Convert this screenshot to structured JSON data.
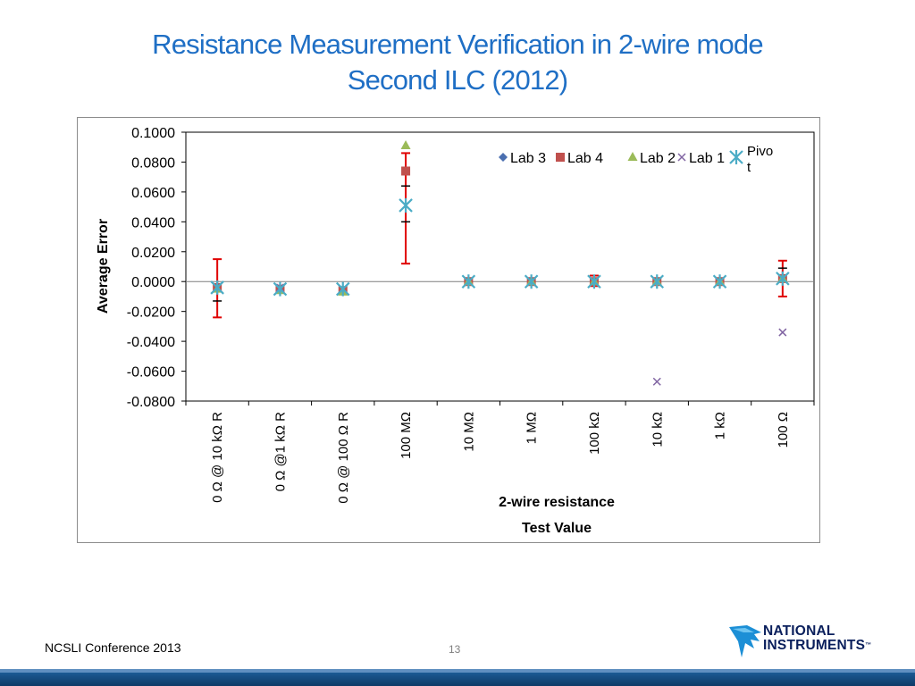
{
  "slide": {
    "title_line1": "Resistance Measurement Verification in 2-wire mode",
    "title_line2": "Second ILC (2012)",
    "footer_left": "NCSLI Conference 2013",
    "page_number": "13",
    "logo_line1": "NATIONAL",
    "logo_line2": "INSTRUMENTS",
    "logo_tm": "™"
  },
  "colors": {
    "title": "#1f6fc5",
    "lab3": "#4a6fb0",
    "lab4": "#c0504d",
    "lab2": "#9bbb59",
    "lab1": "#8064a2",
    "pivot": "#4bacc6",
    "error_bar": "#e00000",
    "zero_line": "#7f7f7f"
  },
  "chart_data": {
    "type": "scatter",
    "title": "",
    "ylabel": "Average Error",
    "xlabel_line1": "2-wire resistance",
    "xlabel_line2": "Test Value",
    "ylim": [
      -0.08,
      0.1
    ],
    "yticks": [
      0.1,
      0.08,
      0.06,
      0.04,
      0.02,
      0.0,
      -0.02,
      -0.04,
      -0.06,
      -0.08
    ],
    "ytick_labels": [
      "0.1000",
      "0.0800",
      "0.0600",
      "0.0400",
      "0.0200",
      "0.0000",
      "-0.0200",
      "-0.0400",
      "-0.0600",
      "-0.0800"
    ],
    "grid": false,
    "legend_position": "top-right",
    "categories": [
      "0 Ω @ 10 kΩ R",
      "0 Ω  @1 kΩ R",
      "0 Ω @ 100 Ω R",
      "100 MΩ",
      "10 MΩ",
      "1 MΩ",
      "100 kΩ",
      "10 kΩ",
      "1 kΩ",
      "100 Ω"
    ],
    "series": [
      {
        "name": "Lab 3",
        "marker": "diamond",
        "color": "#4a6fb0",
        "values": [
          -0.004,
          -0.005,
          -0.006,
          null,
          0.0,
          0.0,
          0.0,
          0.0,
          0.0,
          0.002
        ]
      },
      {
        "name": "Lab 4",
        "marker": "square",
        "color": "#c0504d",
        "values": [
          -0.004,
          -0.005,
          -0.006,
          0.074,
          0.0,
          0.0,
          0.0,
          0.0,
          0.0,
          0.002
        ]
      },
      {
        "name": "Lab 2",
        "marker": "triangle",
        "color": "#9bbb59",
        "values": [
          -0.005,
          -0.006,
          -0.007,
          0.091,
          0.0,
          0.0,
          0.0,
          0.0,
          0.0,
          0.002
        ]
      },
      {
        "name": "Lab 1",
        "marker": "x",
        "color": "#8064a2",
        "values": [
          -0.004,
          -0.004,
          -0.005,
          null,
          0.0,
          0.0,
          0.0,
          -0.067,
          0.0,
          -0.034
        ]
      },
      {
        "name": "Pivo\nt",
        "marker": "star",
        "color": "#4bacc6",
        "values": [
          -0.004,
          -0.005,
          -0.005,
          0.051,
          0.0,
          0.0,
          0.0,
          0.0,
          0.0,
          0.002
        ]
      }
    ],
    "error_bars": [
      {
        "category": "0 Ω @ 10 kΩ R",
        "low": -0.024,
        "high": 0.015,
        "mid_ticks": [
          -0.013
        ]
      },
      {
        "category": "100 MΩ",
        "low": 0.012,
        "high": 0.086,
        "mid_ticks": [
          0.064,
          0.04
        ]
      },
      {
        "category": "100 kΩ",
        "low": -0.003,
        "high": 0.004,
        "mid_ticks": []
      },
      {
        "category": "100 Ω",
        "low": -0.01,
        "high": 0.014,
        "mid_ticks": [
          0.009
        ]
      }
    ]
  }
}
